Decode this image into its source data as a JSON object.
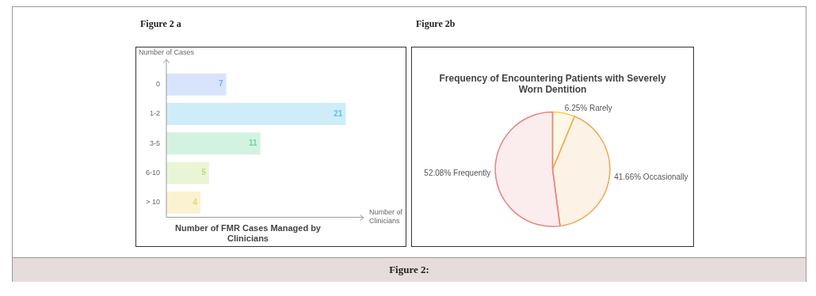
{
  "chart_data": [
    {
      "type": "bar",
      "orientation": "horizontal",
      "title": "Number of FMR Cases Managed by Clinicians",
      "ylabel": "Number of Cases",
      "xlabel": "Number of Clinicians",
      "categories": [
        "0",
        "1-2",
        "3-5",
        "6-10",
        "> 10"
      ],
      "values": [
        7,
        21,
        11,
        5,
        4
      ],
      "colors": [
        "#7fa6f2",
        "#5cc2ec",
        "#72d39c",
        "#b8dd78",
        "#efd566"
      ],
      "data_labels": true,
      "tick_labels": "y",
      "annotations": [
        "Figure 2 a",
        "Figure 2:"
      ]
    },
    {
      "type": "pie",
      "title": "Frequency of Encountering Patients with Severely Worn Dentition",
      "categories": [
        "Rarely",
        "Occasionally",
        "Frequently"
      ],
      "values": [
        6.25,
        41.66,
        52.08
      ],
      "value_labels": [
        "6.25%",
        "41.66%",
        "52.08%"
      ],
      "colors": [
        "#efd24f",
        "#e9a95a",
        "#e58383"
      ],
      "annotations": [
        "Figure 2b"
      ]
    }
  ]
}
